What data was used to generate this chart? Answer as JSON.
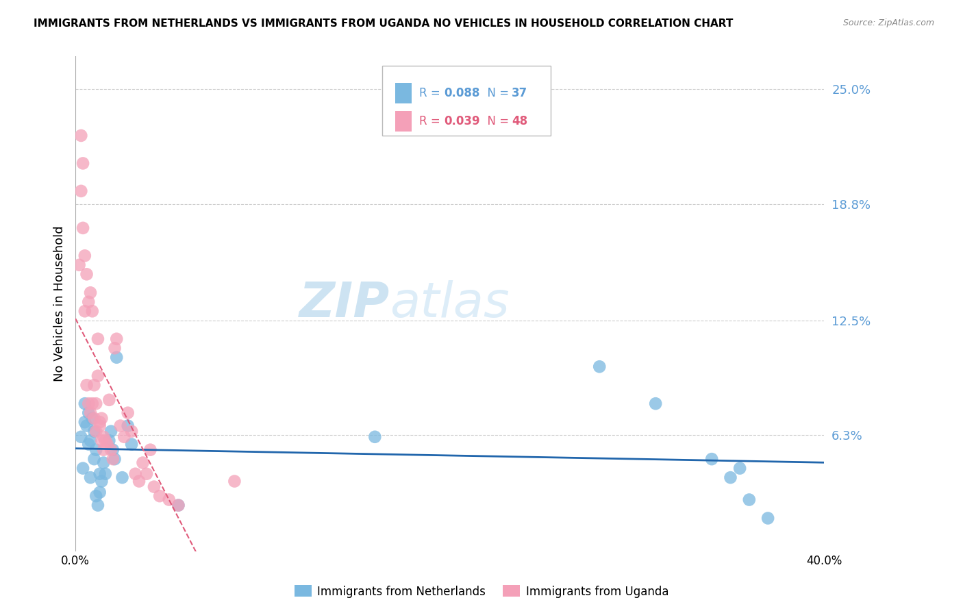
{
  "title": "IMMIGRANTS FROM NETHERLANDS VS IMMIGRANTS FROM UGANDA NO VEHICLES IN HOUSEHOLD CORRELATION CHART",
  "source": "Source: ZipAtlas.com",
  "ylabel": "No Vehicles in Household",
  "right_yticks": [
    "25.0%",
    "18.8%",
    "12.5%",
    "6.3%"
  ],
  "right_ytick_vals": [
    0.25,
    0.188,
    0.125,
    0.063
  ],
  "color_netherlands": "#7ab8e0",
  "color_uganda": "#f4a0b8",
  "line_color_netherlands": "#2166ac",
  "line_color_uganda": "#e05a7a",
  "watermark": "ZIPatlas",
  "xlim": [
    0.0,
    0.4
  ],
  "ylim": [
    0.0,
    0.268
  ],
  "scatter_netherlands_x": [
    0.003,
    0.004,
    0.005,
    0.005,
    0.006,
    0.007,
    0.007,
    0.008,
    0.008,
    0.009,
    0.01,
    0.01,
    0.011,
    0.011,
    0.012,
    0.013,
    0.013,
    0.014,
    0.015,
    0.016,
    0.018,
    0.019,
    0.02,
    0.021,
    0.022,
    0.025,
    0.028,
    0.03,
    0.055,
    0.16,
    0.28,
    0.31,
    0.34,
    0.35,
    0.355,
    0.36,
    0.37
  ],
  "scatter_netherlands_y": [
    0.062,
    0.045,
    0.07,
    0.08,
    0.068,
    0.075,
    0.058,
    0.06,
    0.04,
    0.072,
    0.065,
    0.05,
    0.055,
    0.03,
    0.025,
    0.042,
    0.032,
    0.038,
    0.048,
    0.042,
    0.06,
    0.065,
    0.055,
    0.05,
    0.105,
    0.04,
    0.068,
    0.058,
    0.025,
    0.062,
    0.1,
    0.08,
    0.05,
    0.04,
    0.045,
    0.028,
    0.018
  ],
  "scatter_uganda_x": [
    0.002,
    0.003,
    0.003,
    0.004,
    0.004,
    0.005,
    0.005,
    0.006,
    0.006,
    0.007,
    0.007,
    0.008,
    0.008,
    0.009,
    0.009,
    0.01,
    0.01,
    0.011,
    0.011,
    0.012,
    0.012,
    0.013,
    0.013,
    0.014,
    0.014,
    0.015,
    0.015,
    0.016,
    0.017,
    0.018,
    0.019,
    0.02,
    0.021,
    0.022,
    0.024,
    0.026,
    0.028,
    0.03,
    0.032,
    0.034,
    0.036,
    0.038,
    0.04,
    0.042,
    0.045,
    0.05,
    0.055,
    0.085
  ],
  "scatter_uganda_y": [
    0.155,
    0.225,
    0.195,
    0.175,
    0.21,
    0.16,
    0.13,
    0.15,
    0.09,
    0.135,
    0.08,
    0.14,
    0.075,
    0.13,
    0.08,
    0.09,
    0.072,
    0.08,
    0.065,
    0.115,
    0.095,
    0.07,
    0.068,
    0.072,
    0.06,
    0.062,
    0.055,
    0.06,
    0.058,
    0.082,
    0.055,
    0.05,
    0.11,
    0.115,
    0.068,
    0.062,
    0.075,
    0.065,
    0.042,
    0.038,
    0.048,
    0.042,
    0.055,
    0.035,
    0.03,
    0.028,
    0.025,
    0.038
  ]
}
